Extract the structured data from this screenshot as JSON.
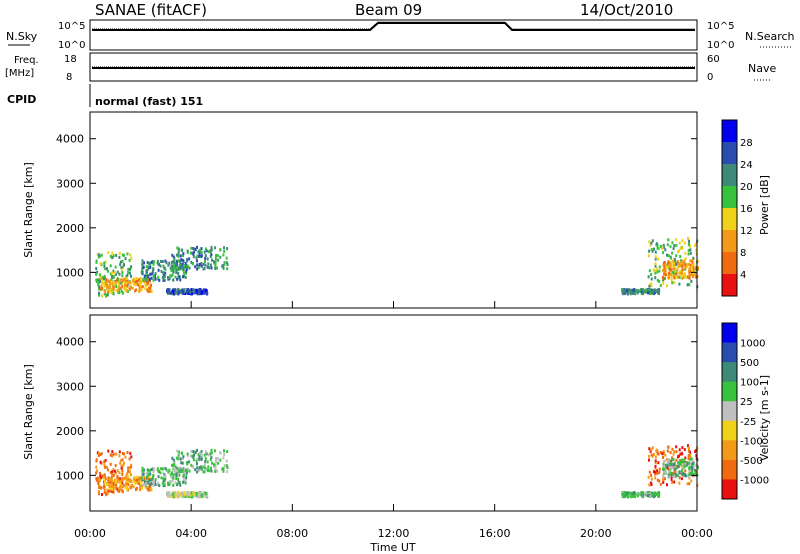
{
  "header": {
    "station": "SANAE (fitACF)",
    "beam": "Beam 09",
    "date": "14/Oct/2010"
  },
  "top_panels": {
    "nsky_label": "N.Sky",
    "nsky_ticks": [
      "10^5",
      "10^0"
    ],
    "nsearch_label": "N.Search",
    "nsearch_ticks": [
      "10^5",
      "10^0"
    ],
    "freq_label_1": "Freq.",
    "freq_label_2": "[MHz]",
    "freq_ticks": [
      "18",
      "8"
    ],
    "nave_label": "Nave",
    "nave_ticks": [
      "60",
      "0"
    ],
    "cpid_label": "CPID",
    "cpid_value": "normal (fast) 151"
  },
  "chart_data": [
    {
      "type": "heatmap",
      "name": "power",
      "ylabel": "Slant Range [km]",
      "yticks": [
        "4000",
        "3000",
        "2000",
        "1000"
      ],
      "ylim": [
        200,
        4600
      ],
      "xlim_hours": [
        0,
        24
      ],
      "colorbar_label": "Power [dB]",
      "colorbar_ticks": [
        "28",
        "24",
        "20",
        "16",
        "12",
        "8",
        "4"
      ],
      "colors": [
        "#0000ee",
        "#2a4bb0",
        "#3d8a78",
        "#39c23c",
        "#f0d21a",
        "#f39a18",
        "#f06a10",
        "#e81010"
      ],
      "regions": [
        {
          "t0": 0.2,
          "t1": 1.6,
          "r0": 500,
          "r1": 1500,
          "level": 3
        },
        {
          "t0": 0.4,
          "t1": 2.4,
          "r0": 600,
          "r1": 900,
          "level": 5
        },
        {
          "t0": 2.0,
          "t1": 3.8,
          "r0": 850,
          "r1": 1300,
          "level": 2
        },
        {
          "t0": 3.2,
          "t1": 5.4,
          "r0": 1100,
          "r1": 1600,
          "level": 2
        },
        {
          "t0": 3.0,
          "t1": 4.6,
          "r0": 550,
          "r1": 650,
          "level": 1
        },
        {
          "t0": 21.0,
          "t1": 22.5,
          "r0": 550,
          "r1": 650,
          "level": 2
        },
        {
          "t0": 22.0,
          "t1": 24.0,
          "r0": 700,
          "r1": 1800,
          "level": 3
        },
        {
          "t0": 22.6,
          "t1": 24.0,
          "r0": 900,
          "r1": 1300,
          "level": 5
        }
      ]
    },
    {
      "type": "heatmap",
      "name": "velocity",
      "ylabel": "Slant Range [km]",
      "yticks": [
        "4000",
        "3000",
        "2000",
        "1000"
      ],
      "ylim": [
        200,
        4600
      ],
      "xlim_hours": [
        0,
        24
      ],
      "colorbar_label": "Velocity [m s-1]",
      "colorbar_ticks": [
        "1000",
        "500",
        "100",
        "25",
        "-25",
        "-100",
        "-500",
        "-1000"
      ],
      "colors": [
        "#0000ee",
        "#2a4bb0",
        "#3d8a78",
        "#39c23c",
        "#c0c0c0",
        "#f0d21a",
        "#f39a18",
        "#f06a10",
        "#e81010"
      ],
      "regions": [
        {
          "t0": 0.2,
          "t1": 1.6,
          "r0": 600,
          "r1": 1600,
          "level": 7
        },
        {
          "t0": 0.5,
          "t1": 2.4,
          "r0": 700,
          "r1": 1000,
          "level": 6
        },
        {
          "t0": 2.0,
          "t1": 3.8,
          "r0": 800,
          "r1": 1200,
          "level": 3
        },
        {
          "t0": 3.2,
          "t1": 5.4,
          "r0": 1100,
          "r1": 1600,
          "level": 3
        },
        {
          "t0": 3.0,
          "t1": 4.6,
          "r0": 550,
          "r1": 650,
          "level": 4
        },
        {
          "t0": 21.0,
          "t1": 22.5,
          "r0": 550,
          "r1": 650,
          "level": 3
        },
        {
          "t0": 22.0,
          "t1": 24.0,
          "r0": 800,
          "r1": 1700,
          "level": 7
        },
        {
          "t0": 22.6,
          "t1": 24.0,
          "r0": 1000,
          "r1": 1400,
          "level": 3
        }
      ]
    }
  ],
  "time_axis": {
    "ticks": [
      "00:00",
      "04:00",
      "08:00",
      "12:00",
      "16:00",
      "20:00",
      "00:00"
    ],
    "label": "Time UT"
  }
}
